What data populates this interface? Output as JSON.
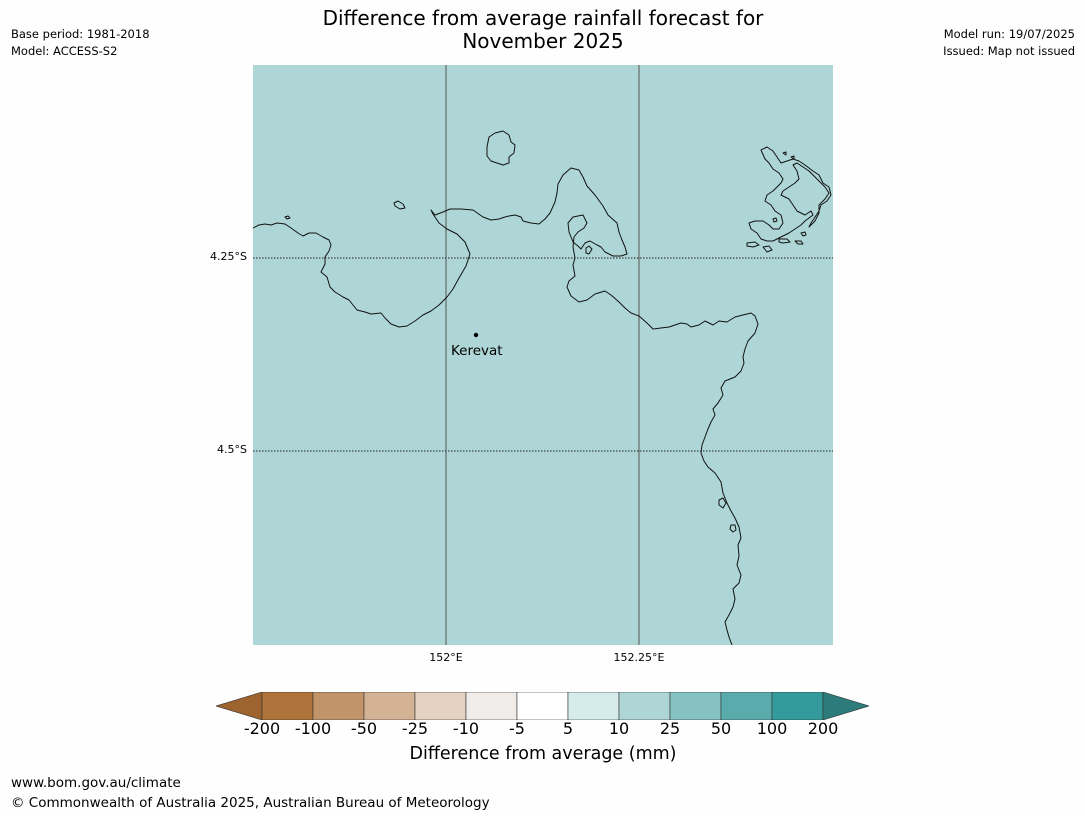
{
  "title": {
    "line1": "Difference from average rainfall forecast for",
    "line2": "November 2025"
  },
  "meta_left": {
    "base_period": "Base period: 1981-2018",
    "model": "Model: ACCESS-S2"
  },
  "meta_right": {
    "model_run": "Model run: 19/07/2025",
    "issued": "Issued: Map not issued"
  },
  "map": {
    "fill_color": "#aed6d6",
    "fill_category": "10 to 25",
    "latitude_labels": [
      "4.25°S",
      "4.5°S"
    ],
    "longitude_labels": [
      "152°E",
      "152.25°E"
    ],
    "places": [
      {
        "name": "Kerevat"
      }
    ]
  },
  "colorbar": {
    "tick_labels": [
      "-200",
      "-100",
      "-50",
      "-25",
      "-10",
      "-5",
      "5",
      "10",
      "25",
      "50",
      "100",
      "200"
    ],
    "colors": [
      "#9d6430",
      "#ad733b",
      "#c1946a",
      "#d4b394",
      "#e4d1c0",
      "#efece9",
      "#ffffff",
      "#d6ebeb",
      "#aed6d6",
      "#86c2c2",
      "#5aacac",
      "#339b9b",
      "#2e7b7b"
    ],
    "label": "Difference from average (mm)"
  },
  "footer": {
    "url": "www.bom.gov.au/climate",
    "copyright": "© Commonwealth of Australia 2025, Australian Bureau of Meteorology"
  }
}
